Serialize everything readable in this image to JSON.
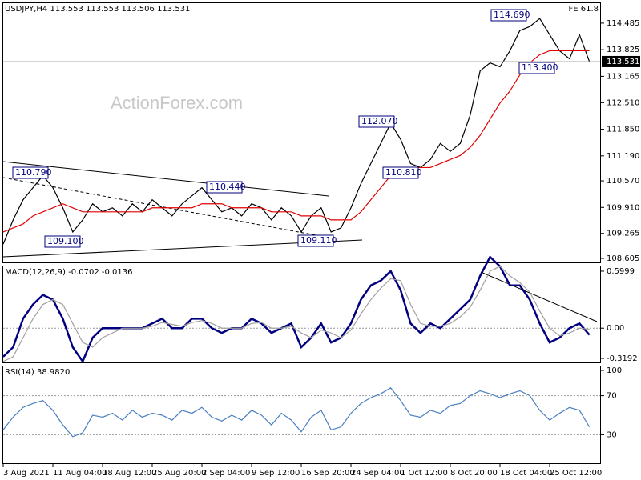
{
  "chart_data": [
    {
      "type": "line",
      "title": "USDJPY,H4  113.553 113.553 113.506 113.531",
      "corner_label": "FE 61.8",
      "watermark": "ActionForex.com",
      "ylim": [
        108.545,
        114.98
      ],
      "yticks": [
        114.485,
        113.825,
        113.165,
        {
          "value": 112.51,
          "label": "112.510"
        },
        {
          "value": 111.85,
          "label": "111.850"
        },
        {
          "value": 111.19,
          "label": "111.190"
        },
        {
          "value": 110.57,
          "label": "110.570"
        },
        {
          "value": 109.91,
          "label": "109.910"
        },
        109.265,
        108.605
      ],
      "current_price": 113.531,
      "annotations": [
        "110.790",
        "109.100",
        "110.440",
        "109.110",
        "112.070",
        "110.810",
        "114.690",
        "113.400"
      ],
      "series": [
        {
          "name": "USDJPY",
          "color": "#000000",
          "values": [
            109.0,
            109.6,
            110.1,
            110.4,
            110.7,
            110.4,
            109.9,
            109.3,
            109.6,
            110.0,
            109.8,
            109.9,
            109.7,
            110.0,
            109.8,
            110.1,
            109.9,
            109.7,
            110.0,
            110.2,
            110.4,
            110.1,
            109.8,
            109.9,
            109.7,
            110.0,
            109.9,
            109.6,
            109.9,
            109.7,
            109.3,
            109.7,
            109.9,
            109.3,
            109.4,
            109.9,
            110.5,
            111.0,
            111.5,
            112.0,
            111.6,
            111.0,
            110.9,
            111.1,
            111.5,
            111.3,
            111.5,
            112.2,
            113.3,
            113.5,
            113.4,
            113.8,
            114.3,
            114.4,
            114.6,
            114.2,
            113.8,
            113.6,
            114.2,
            113.531
          ]
        },
        {
          "name": "MA",
          "color": "#e00000",
          "values": [
            109.3,
            109.4,
            109.5,
            109.7,
            109.8,
            109.9,
            110.0,
            109.9,
            109.8,
            109.8,
            109.8,
            109.8,
            109.8,
            109.8,
            109.8,
            109.9,
            109.9,
            109.9,
            109.9,
            109.9,
            110.0,
            110.0,
            110.0,
            109.9,
            109.9,
            109.9,
            109.9,
            109.8,
            109.8,
            109.8,
            109.7,
            109.7,
            109.7,
            109.6,
            109.6,
            109.6,
            109.8,
            110.1,
            110.4,
            110.7,
            110.9,
            110.9,
            110.9,
            110.9,
            111.0,
            111.1,
            111.2,
            111.4,
            111.7,
            112.1,
            112.5,
            112.8,
            113.2,
            113.5,
            113.7,
            113.8,
            113.8,
            113.8,
            113.8,
            113.8
          ]
        }
      ]
    },
    {
      "type": "line",
      "title": "MACD(12,26,9) -0.0702 -0.0136",
      "ylim": [
        -0.36,
        0.65
      ],
      "yticks": [
        0.5999,
        {
          "value": 0,
          "label": "0.00"
        },
        -0.3192
      ],
      "series": [
        {
          "name": "MACD",
          "color": "#000080",
          "values": [
            -0.3,
            -0.2,
            0.1,
            0.25,
            0.35,
            0.3,
            0.1,
            -0.2,
            -0.35,
            -0.1,
            0.0,
            0.0,
            0.0,
            0.0,
            0.0,
            0.05,
            0.1,
            0.0,
            0.0,
            0.1,
            0.1,
            0.0,
            -0.05,
            0.0,
            0.0,
            0.1,
            0.05,
            -0.05,
            0.0,
            0.05,
            -0.2,
            -0.1,
            0.05,
            -0.15,
            -0.1,
            0.05,
            0.3,
            0.45,
            0.5,
            0.6,
            0.4,
            0.05,
            -0.05,
            0.05,
            0.0,
            0.1,
            0.2,
            0.3,
            0.55,
            0.75,
            0.65,
            0.45,
            0.45,
            0.3,
            0.05,
            -0.15,
            -0.1,
            0.0,
            0.05,
            -0.07
          ]
        },
        {
          "name": "Signal",
          "color": "#a0a0a0",
          "values": [
            -0.35,
            -0.3,
            -0.1,
            0.1,
            0.25,
            0.3,
            0.25,
            0.05,
            -0.15,
            -0.2,
            -0.1,
            -0.05,
            0.0,
            0.0,
            0.0,
            0.02,
            0.06,
            0.04,
            0.02,
            0.06,
            0.08,
            0.05,
            0.0,
            0.0,
            0.0,
            0.05,
            0.06,
            0.0,
            0.0,
            0.02,
            -0.05,
            -0.1,
            -0.02,
            -0.05,
            -0.1,
            -0.02,
            0.15,
            0.3,
            0.42,
            0.52,
            0.5,
            0.25,
            0.05,
            0.02,
            0.02,
            0.05,
            0.12,
            0.22,
            0.4,
            0.6,
            0.65,
            0.55,
            0.48,
            0.38,
            0.18,
            0.0,
            -0.08,
            -0.05,
            0.0,
            -0.01
          ]
        }
      ]
    },
    {
      "type": "line",
      "title": "RSI(14) 38.9820",
      "ylim": [
        0,
        100
      ],
      "yticks": [
        100,
        70,
        30
      ],
      "categories": [
        "3 Aug 2021",
        null,
        null,
        null,
        null,
        "11 Aug 04:00",
        null,
        null,
        null,
        null,
        "18 Aug 12:00",
        null,
        null,
        null,
        null,
        "25 Aug 20:00",
        null,
        null,
        null,
        null,
        "2 Sep 04:00",
        null,
        null,
        null,
        null,
        "9 Sep 12:00",
        null,
        null,
        null,
        null,
        "16 Sep 20:00",
        null,
        null,
        null,
        null,
        "24 Sep 04:00",
        null,
        null,
        null,
        null,
        "1 Oct 12:00",
        null,
        null,
        null,
        null,
        "8 Oct 20:00",
        null,
        null,
        null,
        null,
        "18 Oct 04:00",
        null,
        null,
        null,
        null,
        "25 Oct 12:00",
        null,
        null,
        null,
        null
      ],
      "series": [
        {
          "name": "RSI",
          "color": "#4a7fc0",
          "values": [
            35,
            48,
            58,
            62,
            65,
            55,
            40,
            28,
            32,
            50,
            48,
            52,
            45,
            55,
            48,
            52,
            50,
            45,
            55,
            52,
            58,
            48,
            44,
            50,
            45,
            55,
            50,
            40,
            52,
            45,
            33,
            48,
            55,
            35,
            38,
            52,
            62,
            68,
            72,
            78,
            65,
            50,
            48,
            55,
            52,
            60,
            62,
            70,
            75,
            72,
            68,
            72,
            75,
            70,
            55,
            45,
            52,
            58,
            55,
            38
          ]
        }
      ]
    }
  ]
}
